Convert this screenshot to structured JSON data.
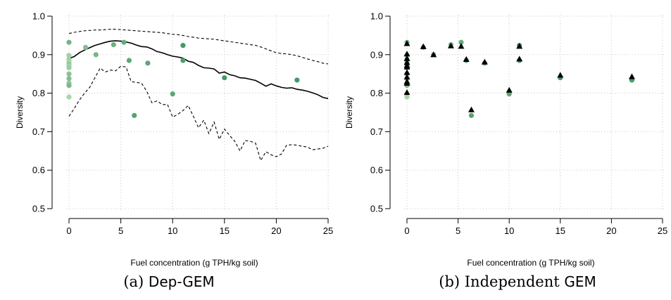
{
  "chart_data": [
    {
      "type": "scatter",
      "xlabel": "Fuel concentration (g TPH/kg soil)",
      "ylabel": "Diversity",
      "xlim": [
        0,
        25
      ],
      "ylim": [
        0.5,
        1.0
      ],
      "x_ticks": [
        "0",
        "5",
        "10",
        "15",
        "20",
        "25"
      ],
      "y_ticks": [
        "0.5",
        "0.6",
        "0.7",
        "0.8",
        "0.9",
        "1.0"
      ],
      "grid": "dotted",
      "caption_prefix": "(a) ",
      "caption_name": "Dep-GEM",
      "points": {
        "x": [
          0,
          0,
          0,
          0,
          0,
          0,
          0,
          0,
          0,
          0,
          0,
          0,
          1.6,
          2.6,
          4.3,
          5.3,
          5.8,
          6.3,
          7.6,
          10,
          11,
          11,
          15,
          22
        ],
        "y": [
          0.932,
          0.898,
          0.888,
          0.882,
          0.876,
          0.871,
          0.866,
          0.85,
          0.838,
          0.826,
          0.82,
          0.79,
          0.919,
          0.9,
          0.926,
          0.932,
          0.885,
          0.742,
          0.878,
          0.798,
          0.924,
          0.885,
          0.84,
          0.834
        ],
        "shade": [
          0.55,
          0.25,
          0.3,
          0.2,
          0.35,
          0.25,
          0.3,
          0.4,
          0.45,
          0.35,
          0.5,
          0.2,
          0.45,
          0.55,
          0.6,
          0.65,
          0.7,
          0.75,
          0.7,
          0.7,
          0.85,
          0.8,
          0.85,
          0.85
        ],
        "colors": [
          "#c7e9c0",
          "#2e8b57"
        ]
      },
      "series": [
        {
          "name": "",
          "style": "solid",
          "x": [
            0,
            0.5,
            1,
            1.5,
            2,
            2.5,
            3,
            3.5,
            4,
            4.5,
            5,
            5.5,
            6,
            6.5,
            7,
            7.5,
            8,
            8.5,
            9,
            9.5,
            10,
            10.5,
            11,
            11.5,
            12,
            12.5,
            13,
            13.5,
            14,
            14.5,
            15,
            15.5,
            16,
            16.5,
            17,
            17.5,
            18,
            18.5,
            19,
            19.5,
            20,
            20.5,
            21,
            21.5,
            22,
            22.5,
            23,
            23.5,
            24,
            24.5,
            25
          ],
          "y": [
            0.89,
            0.895,
            0.905,
            0.912,
            0.918,
            0.924,
            0.928,
            0.932,
            0.935,
            0.936,
            0.935,
            0.933,
            0.93,
            0.925,
            0.921,
            0.92,
            0.915,
            0.908,
            0.905,
            0.9,
            0.896,
            0.894,
            0.891,
            0.883,
            0.88,
            0.872,
            0.866,
            0.865,
            0.863,
            0.852,
            0.855,
            0.848,
            0.845,
            0.84,
            0.839,
            0.836,
            0.833,
            0.826,
            0.818,
            0.824,
            0.819,
            0.815,
            0.813,
            0.814,
            0.81,
            0.808,
            0.805,
            0.801,
            0.796,
            0.789,
            0.786
          ]
        },
        {
          "name": "",
          "style": "dashed",
          "x": [
            0,
            0.5,
            1,
            1.5,
            2,
            2.5,
            3,
            3.5,
            4,
            4.5,
            5,
            5.5,
            6,
            6.5,
            7,
            7.5,
            8,
            8.5,
            9,
            9.5,
            10,
            10.5,
            11,
            11.5,
            12,
            12.5,
            13,
            13.5,
            14,
            14.5,
            15,
            15.5,
            16,
            16.5,
            17,
            17.5,
            18,
            18.5,
            19,
            19.5,
            20,
            20.5,
            21,
            21.5,
            22,
            22.5,
            23,
            23.5,
            24,
            24.5,
            25
          ],
          "y": [
            0.955,
            0.958,
            0.96,
            0.962,
            0.963,
            0.964,
            0.964,
            0.965,
            0.966,
            0.966,
            0.965,
            0.964,
            0.963,
            0.962,
            0.961,
            0.96,
            0.959,
            0.958,
            0.957,
            0.955,
            0.953,
            0.952,
            0.95,
            0.947,
            0.945,
            0.943,
            0.942,
            0.941,
            0.94,
            0.938,
            0.936,
            0.934,
            0.932,
            0.93,
            0.928,
            0.926,
            0.924,
            0.92,
            0.915,
            0.91,
            0.905,
            0.903,
            0.902,
            0.9,
            0.897,
            0.893,
            0.889,
            0.885,
            0.882,
            0.878,
            0.876
          ]
        },
        {
          "name": "",
          "style": "dashed",
          "x": [
            0,
            0.5,
            1,
            1.5,
            2,
            2.5,
            3,
            3.5,
            4,
            4.5,
            5,
            5.5,
            6,
            6.5,
            7,
            7.5,
            8,
            8.5,
            9,
            9.5,
            10,
            10.5,
            11,
            11.5,
            12,
            12.5,
            13,
            13.5,
            14,
            14.5,
            15,
            15.5,
            16,
            16.5,
            17,
            17.5,
            18,
            18.5,
            19,
            19.5,
            20,
            20.5,
            21,
            21.5,
            22,
            22.5,
            23,
            23.5,
            24,
            24.5,
            25
          ],
          "y": [
            0.74,
            0.76,
            0.782,
            0.8,
            0.815,
            0.84,
            0.865,
            0.855,
            0.86,
            0.858,
            0.87,
            0.868,
            0.83,
            0.828,
            0.826,
            0.805,
            0.775,
            0.78,
            0.77,
            0.771,
            0.738,
            0.745,
            0.755,
            0.768,
            0.74,
            0.71,
            0.73,
            0.695,
            0.725,
            0.68,
            0.707,
            0.69,
            0.675,
            0.65,
            0.677,
            0.675,
            0.67,
            0.625,
            0.648,
            0.64,
            0.635,
            0.642,
            0.665,
            0.666,
            0.665,
            0.662,
            0.66,
            0.653,
            0.655,
            0.657,
            0.662
          ]
        }
      ]
    },
    {
      "type": "scatter",
      "xlabel": "Fuel concentration (g TPH/kg soil)",
      "ylabel": "Diversity",
      "xlim": [
        0,
        25
      ],
      "ylim": [
        0.5,
        1.0
      ],
      "x_ticks": [
        "0",
        "5",
        "10",
        "15",
        "20",
        "25"
      ],
      "y_ticks": [
        "0.5",
        "0.6",
        "0.7",
        "0.8",
        "0.9",
        "1.0"
      ],
      "grid": "dotted",
      "caption_prefix": "(b) Independent ",
      "caption_name": "GEM",
      "points": {
        "x": [
          0,
          0,
          0,
          0,
          0,
          0,
          0,
          0,
          0,
          0,
          0,
          0,
          1.6,
          2.6,
          4.3,
          5.3,
          5.8,
          6.3,
          7.6,
          10,
          11,
          11,
          15,
          22
        ],
        "y": [
          0.932,
          0.898,
          0.888,
          0.882,
          0.876,
          0.871,
          0.866,
          0.85,
          0.838,
          0.826,
          0.82,
          0.79,
          0.919,
          0.9,
          0.926,
          0.932,
          0.885,
          0.742,
          0.878,
          0.798,
          0.924,
          0.885,
          0.84,
          0.834
        ],
        "shade": [
          0.55,
          0.25,
          0.3,
          0.2,
          0.35,
          0.25,
          0.3,
          0.4,
          0.45,
          0.35,
          0.5,
          0.2,
          0.45,
          0.55,
          0.6,
          0.65,
          0.7,
          0.75,
          0.7,
          0.7,
          0.85,
          0.8,
          0.85,
          0.85
        ],
        "colors": [
          "#c7e9c0",
          "#2e8b57"
        ]
      },
      "triangles": {
        "x": [
          0,
          0,
          0,
          0,
          0,
          0,
          0,
          0,
          0,
          0,
          0,
          1.6,
          2.6,
          4.3,
          5.3,
          5.8,
          6.3,
          7.6,
          10,
          11,
          11,
          15,
          22
        ],
        "y": [
          0.929,
          0.902,
          0.89,
          0.88,
          0.872,
          0.868,
          0.854,
          0.842,
          0.83,
          0.826,
          0.802,
          0.921,
          0.9,
          0.923,
          0.922,
          0.888,
          0.757,
          0.881,
          0.808,
          0.922,
          0.889,
          0.847,
          0.843
        ],
        "color": "#000000"
      },
      "series": []
    }
  ]
}
